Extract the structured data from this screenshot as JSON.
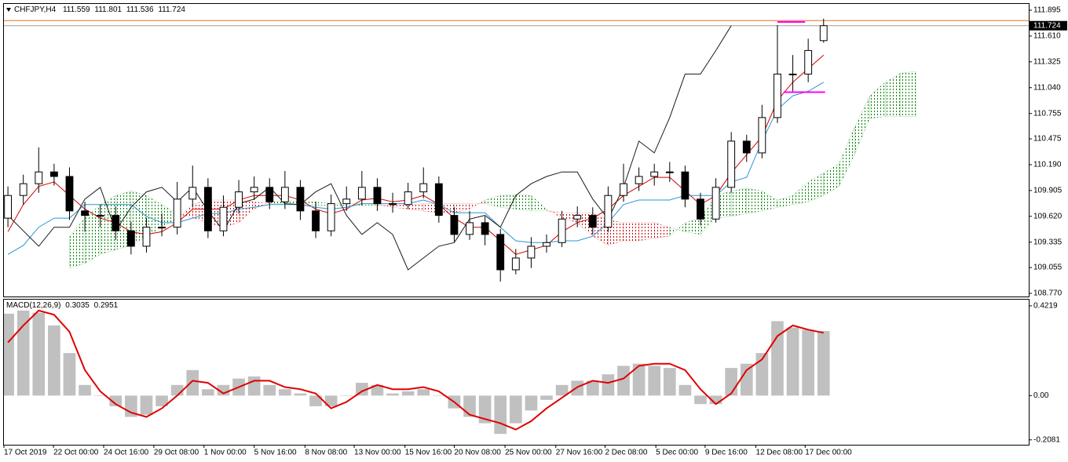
{
  "chart_data": [
    {
      "type": "candlestick",
      "title": "CHFJPY,H4",
      "x": [
        0,
        1,
        2,
        3,
        4,
        5,
        6,
        7,
        8,
        9,
        10,
        11,
        12,
        13,
        14,
        15,
        16,
        17,
        18,
        19,
        20,
        21,
        22,
        23,
        24,
        25,
        26,
        27,
        28,
        29,
        30,
        31,
        32,
        33,
        34,
        35,
        36,
        37,
        38,
        39,
        40,
        41,
        42,
        43,
        44,
        45,
        46,
        47,
        48,
        49,
        50,
        51,
        52,
        53,
        54,
        55,
        56,
        57,
        58,
        59
      ],
      "open": [
        109.6,
        109.85,
        109.98,
        110.11,
        110.06,
        109.68,
        109.63,
        109.63,
        109.46,
        109.29,
        109.5,
        109.5,
        109.81,
        109.94,
        109.46,
        109.72,
        109.89,
        109.94,
        109.78,
        109.94,
        109.68,
        109.46,
        109.76,
        109.81,
        109.94,
        109.76,
        109.75,
        109.89,
        109.98,
        109.63,
        109.42,
        109.55,
        109.42,
        109.03,
        109.16,
        109.29,
        109.33,
        109.59,
        109.63,
        109.5,
        109.85,
        109.98,
        110.06,
        110.11,
        110.11,
        109.81,
        109.59,
        109.94,
        110.45,
        110.32,
        110.71,
        111.19,
        111.19,
        111.559,
        null,
        null,
        null,
        null,
        null,
        null
      ],
      "high": [
        109.95,
        110.08,
        110.38,
        110.2,
        110.16,
        109.78,
        109.75,
        109.73,
        109.56,
        109.6,
        109.65,
        110.0,
        110.18,
        110.04,
        109.85,
        110.02,
        110.06,
        110.04,
        110.12,
        110.02,
        109.78,
        109.86,
        109.95,
        110.12,
        110.04,
        109.88,
        109.99,
        110.16,
        110.06,
        109.72,
        109.68,
        109.62,
        109.48,
        109.26,
        109.39,
        109.42,
        109.68,
        109.73,
        109.72,
        109.95,
        110.2,
        110.16,
        110.2,
        110.22,
        110.18,
        109.88,
        110.04,
        110.55,
        110.52,
        110.85,
        111.73,
        111.4,
        111.58,
        111.801,
        null,
        null,
        null,
        null,
        null,
        null
      ],
      "low": [
        109.5,
        109.75,
        109.88,
        109.96,
        109.58,
        109.45,
        109.5,
        109.36,
        109.2,
        109.22,
        109.4,
        109.42,
        109.72,
        109.38,
        109.4,
        109.65,
        109.8,
        109.7,
        109.7,
        109.58,
        109.38,
        109.4,
        109.68,
        109.74,
        109.68,
        109.66,
        109.7,
        109.82,
        109.55,
        109.34,
        109.36,
        109.3,
        108.9,
        108.98,
        109.05,
        109.22,
        109.28,
        109.5,
        109.42,
        109.45,
        109.78,
        109.9,
        109.96,
        110.0,
        109.72,
        109.52,
        109.55,
        109.88,
        110.22,
        110.26,
        110.65,
        111.0,
        111.1,
        111.536,
        null,
        null,
        null,
        null,
        null,
        null
      ],
      "close": [
        109.85,
        109.98,
        110.11,
        110.06,
        109.68,
        109.63,
        109.63,
        109.46,
        109.29,
        109.5,
        109.5,
        109.81,
        109.94,
        109.46,
        109.72,
        109.89,
        109.94,
        109.78,
        109.94,
        109.68,
        109.46,
        109.76,
        109.81,
        109.94,
        109.76,
        109.75,
        109.89,
        109.98,
        109.63,
        109.42,
        109.55,
        109.42,
        109.03,
        109.16,
        109.29,
        109.33,
        109.59,
        109.63,
        109.5,
        109.85,
        109.98,
        110.06,
        110.11,
        110.11,
        109.81,
        109.59,
        109.94,
        110.45,
        110.32,
        110.71,
        111.19,
        111.19,
        111.45,
        111.724,
        null,
        null,
        null,
        null,
        null,
        null
      ],
      "lines": [
        {
          "color": "#d40000",
          "values": [
            109.45,
            109.75,
            109.95,
            110.0,
            109.85,
            109.7,
            109.6,
            109.55,
            109.45,
            109.42,
            109.45,
            109.55,
            109.7,
            109.7,
            109.7,
            109.8,
            109.85,
            109.85,
            109.85,
            109.8,
            109.7,
            109.65,
            109.7,
            109.8,
            109.82,
            109.78,
            109.8,
            109.85,
            109.75,
            109.6,
            109.5,
            109.5,
            109.35,
            109.2,
            109.25,
            109.3,
            109.45,
            109.55,
            109.6,
            109.7,
            109.85,
            109.95,
            110.05,
            110.05,
            109.9,
            109.75,
            109.85,
            110.1,
            110.3,
            110.5,
            110.9,
            111.1,
            111.25,
            111.4,
            null,
            null,
            null,
            null,
            null,
            null
          ]
        },
        {
          "color": "#2b95d6",
          "values": [
            109.2,
            109.3,
            109.5,
            109.6,
            109.6,
            109.75,
            109.75,
            109.75,
            109.75,
            109.62,
            109.55,
            109.55,
            109.6,
            109.65,
            109.65,
            109.7,
            109.72,
            109.75,
            109.75,
            109.75,
            109.72,
            109.7,
            109.72,
            109.76,
            109.76,
            109.76,
            109.76,
            109.8,
            109.75,
            109.66,
            109.66,
            109.66,
            109.5,
            109.35,
            109.33,
            109.33,
            109.35,
            109.35,
            109.4,
            109.55,
            109.75,
            109.8,
            109.8,
            109.8,
            109.85,
            109.85,
            109.85,
            110.0,
            110.05,
            110.45,
            110.8,
            110.95,
            111.0,
            111.1,
            null,
            null,
            null,
            null,
            null,
            null
          ]
        },
        {
          "color": "#1a1a1a",
          "values": [
            109.63,
            109.46,
            109.29,
            109.5,
            109.5,
            109.81,
            109.94,
            109.46,
            109.72,
            109.89,
            109.94,
            109.78,
            109.94,
            109.68,
            109.46,
            109.76,
            109.81,
            109.94,
            109.76,
            109.75,
            109.89,
            109.98,
            109.63,
            109.42,
            109.55,
            109.42,
            109.03,
            109.16,
            109.29,
            109.33,
            109.59,
            109.63,
            109.5,
            109.85,
            109.98,
            110.06,
            110.11,
            110.11,
            109.81,
            109.59,
            109.94,
            110.45,
            110.32,
            110.71,
            111.19,
            111.19,
            111.45,
            111.724,
            null,
            null,
            null,
            null,
            null,
            null,
            null,
            null,
            null,
            null,
            null,
            null
          ]
        }
      ],
      "cloud": {
        "up_color": "#008000",
        "down_color": "#c00000",
        "span_a": [
          null,
          null,
          null,
          null,
          109.4,
          109.6,
          109.75,
          109.85,
          109.9,
          109.85,
          109.75,
          109.65,
          109.6,
          109.55,
          109.5,
          109.55,
          109.7,
          109.78,
          109.8,
          109.78,
          109.78,
          109.76,
          109.76,
          109.76,
          109.75,
          109.72,
          109.7,
          109.68,
          109.66,
          109.66,
          109.7,
          109.8,
          109.85,
          109.86,
          109.85,
          109.7,
          109.6,
          109.55,
          109.4,
          109.3,
          109.35,
          109.35,
          109.38,
          109.4,
          109.55,
          109.6,
          109.85,
          109.9,
          109.93,
          109.9,
          109.8,
          109.85,
          110.0,
          110.1,
          110.2,
          110.6,
          110.95,
          111.1,
          111.2,
          111.22
        ],
        "span_b": [
          null,
          null,
          null,
          null,
          109.05,
          109.1,
          109.2,
          109.25,
          109.3,
          109.4,
          109.5,
          109.6,
          109.75,
          109.8,
          109.8,
          109.8,
          109.78,
          109.76,
          109.76,
          109.75,
          109.74,
          109.74,
          109.74,
          109.74,
          109.74,
          109.74,
          109.75,
          109.76,
          109.76,
          109.76,
          109.76,
          109.76,
          109.72,
          109.7,
          109.68,
          109.68,
          109.66,
          109.66,
          109.66,
          109.58,
          109.55,
          109.55,
          109.55,
          109.5,
          109.45,
          109.42,
          109.6,
          109.62,
          109.65,
          109.68,
          109.72,
          109.75,
          109.78,
          109.85,
          109.95,
          110.3,
          110.7,
          110.72,
          110.72,
          110.72
        ]
      },
      "levels": [
        {
          "value": 111.765,
          "from": 50,
          "to": 51.8,
          "color": "#ff00ff"
        },
        {
          "value": 110.99,
          "from": 50.4,
          "to": 53.1,
          "color": "#ff00ff"
        }
      ],
      "price_line": {
        "value": 111.78,
        "color": "#e8731a"
      },
      "xlim": [
        -0.26,
        66.33
      ],
      "ylim": [
        108.744,
        111.964
      ],
      "yticks": [
        {
          "value": 108.77,
          "label": "108.770"
        },
        109.055,
        109.335,
        {
          "value": 109.62,
          "label": "109.620"
        },
        109.905,
        {
          "value": 110.19,
          "label": "110.190"
        },
        110.475,
        110.755,
        {
          "value": 111.04,
          "label": "111.040"
        },
        111.325,
        {
          "value": 111.61,
          "label": "111.610"
        },
        111.895
      ]
    },
    {
      "type": "macd",
      "title": "MACD(12,26,9)",
      "x": [
        0,
        1,
        2,
        3,
        4,
        5,
        6,
        7,
        8,
        9,
        10,
        11,
        12,
        13,
        14,
        15,
        16,
        17,
        18,
        19,
        20,
        21,
        22,
        23,
        24,
        25,
        26,
        27,
        28,
        29,
        30,
        31,
        32,
        33,
        34,
        35,
        36,
        37,
        38,
        39,
        40,
        41,
        42,
        43,
        44,
        45,
        46,
        47,
        48,
        49,
        50,
        51,
        52,
        53
      ],
      "histogram": {
        "color": "#c0c0c0",
        "values": [
          0.385,
          0.4,
          0.39,
          0.33,
          0.2,
          0.05,
          0.0,
          -0.05,
          -0.1,
          -0.09,
          -0.05,
          0.05,
          0.12,
          0.03,
          0.05,
          0.08,
          0.09,
          0.05,
          0.03,
          0.01,
          -0.05,
          -0.05,
          0.0,
          0.06,
          0.05,
          0.01,
          0.02,
          0.03,
          0.0,
          -0.06,
          -0.1,
          -0.13,
          -0.18,
          -0.13,
          -0.07,
          -0.02,
          0.05,
          0.07,
          0.07,
          0.1,
          0.14,
          0.15,
          0.14,
          0.13,
          0.05,
          -0.04,
          -0.04,
          0.13,
          0.15,
          0.2,
          0.35,
          0.32,
          0.31,
          0.3035
        ]
      },
      "signal": {
        "color": "#e00000",
        "values": [
          0.25,
          0.33,
          0.4,
          0.38,
          0.3,
          0.12,
          0.02,
          -0.04,
          -0.08,
          -0.1,
          -0.06,
          0.0,
          0.07,
          0.06,
          0.01,
          0.04,
          0.07,
          0.07,
          0.04,
          0.03,
          0.01,
          -0.06,
          -0.03,
          0.02,
          0.05,
          0.03,
          0.03,
          0.04,
          0.02,
          -0.03,
          -0.09,
          -0.11,
          -0.13,
          -0.16,
          -0.12,
          -0.06,
          -0.01,
          0.04,
          0.07,
          0.06,
          0.08,
          0.14,
          0.15,
          0.15,
          0.12,
          0.03,
          -0.04,
          0.01,
          0.12,
          0.17,
          0.28,
          0.33,
          0.31,
          0.2951
        ]
      },
      "xlim": [
        -0.26,
        66.33
      ],
      "ylim": [
        -0.2274,
        0.4512
      ],
      "yticks": [
        0.4219,
        {
          "value": 0,
          "label": "0.00"
        },
        -0.2081
      ],
      "xticks": [
        {
          "value": -0.26,
          "label": "17 Oct 2019"
        },
        {
          "value": 2.96,
          "label": "22 Oct 00:00"
        },
        {
          "value": 6.22,
          "label": "24 Oct 16:00"
        },
        {
          "value": 9.48,
          "label": "29 Oct 08:00"
        },
        {
          "value": 12.74,
          "label": "1 Nov 00:00"
        },
        {
          "value": 16.0,
          "label": "5 Nov 16:00"
        },
        {
          "value": 19.3,
          "label": "8 Nov 08:00"
        },
        {
          "value": 22.5,
          "label": "13 Nov 00:00"
        },
        {
          "value": 25.8,
          "label": "15 Nov 16:00"
        },
        {
          "value": 29.0,
          "label": "20 Nov 08:00"
        },
        {
          "value": 32.3,
          "label": "25 Nov 00:00"
        },
        {
          "value": 35.6,
          "label": "27 Nov 16:00"
        },
        {
          "value": 38.8,
          "label": "2 Dec 08:00"
        },
        {
          "value": 42.1,
          "label": "5 Dec 00:00"
        },
        {
          "value": 45.3,
          "label": "9 Dec 16:00"
        },
        {
          "value": 48.6,
          "label": "12 Dec 08:00"
        },
        {
          "value": 51.8,
          "label": "17 Dec 00:00"
        }
      ]
    }
  ]
}
